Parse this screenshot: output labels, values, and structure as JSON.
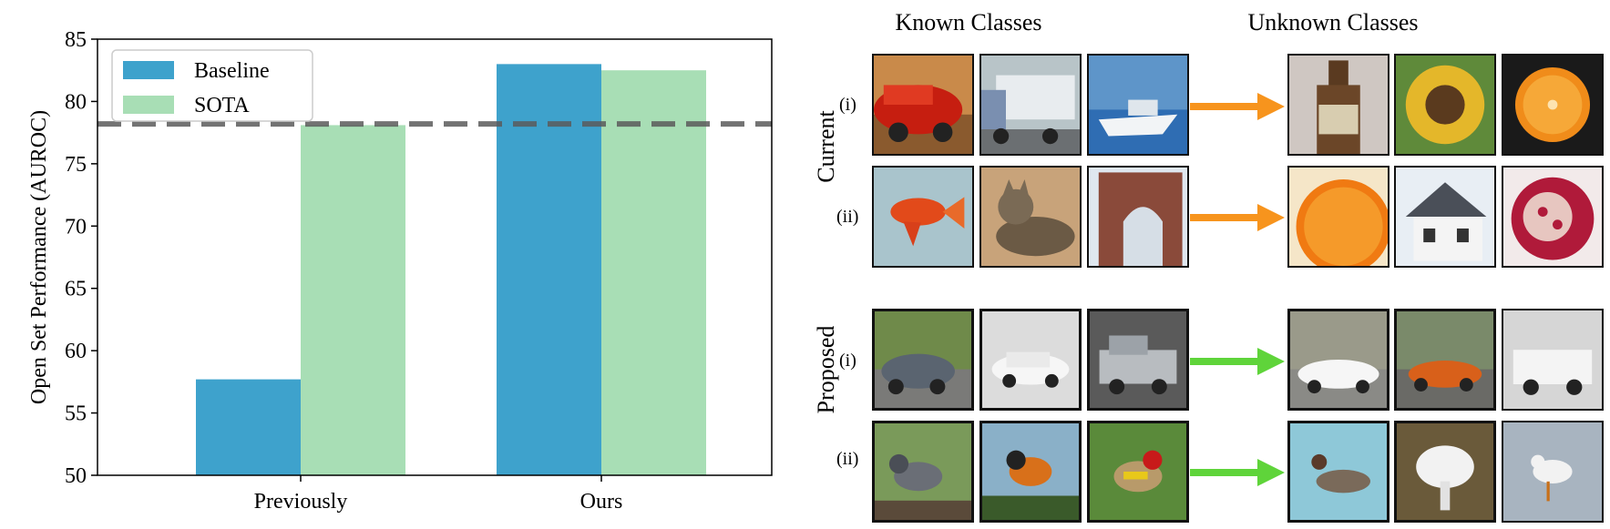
{
  "chart_data": {
    "type": "bar",
    "categories": [
      "Previously",
      "Ours"
    ],
    "series": [
      {
        "name": "Baseline",
        "values": [
          57.7,
          83.0
        ],
        "color": "#3ea2cc"
      },
      {
        "name": "SOTA",
        "values": [
          78.1,
          82.5
        ],
        "color": "#a8deb5"
      }
    ],
    "reference_line": 78.2,
    "ylabel": "Open Set Performance (AUROC)",
    "xlabel": "",
    "ylim": [
      50,
      85
    ],
    "yticks": [
      50,
      55,
      60,
      65,
      70,
      75,
      80,
      85
    ],
    "legend_position": "top-left",
    "grid": false
  },
  "figure": {
    "known_header": "Known Classes",
    "unknown_header": "Unknown Classes",
    "current_label": "Current",
    "proposed_label": "Proposed",
    "row_i": "(i)",
    "row_ii": "(ii)",
    "current_arrow_color": "#f7941d",
    "proposed_arrow_color": "#5fd43a"
  }
}
